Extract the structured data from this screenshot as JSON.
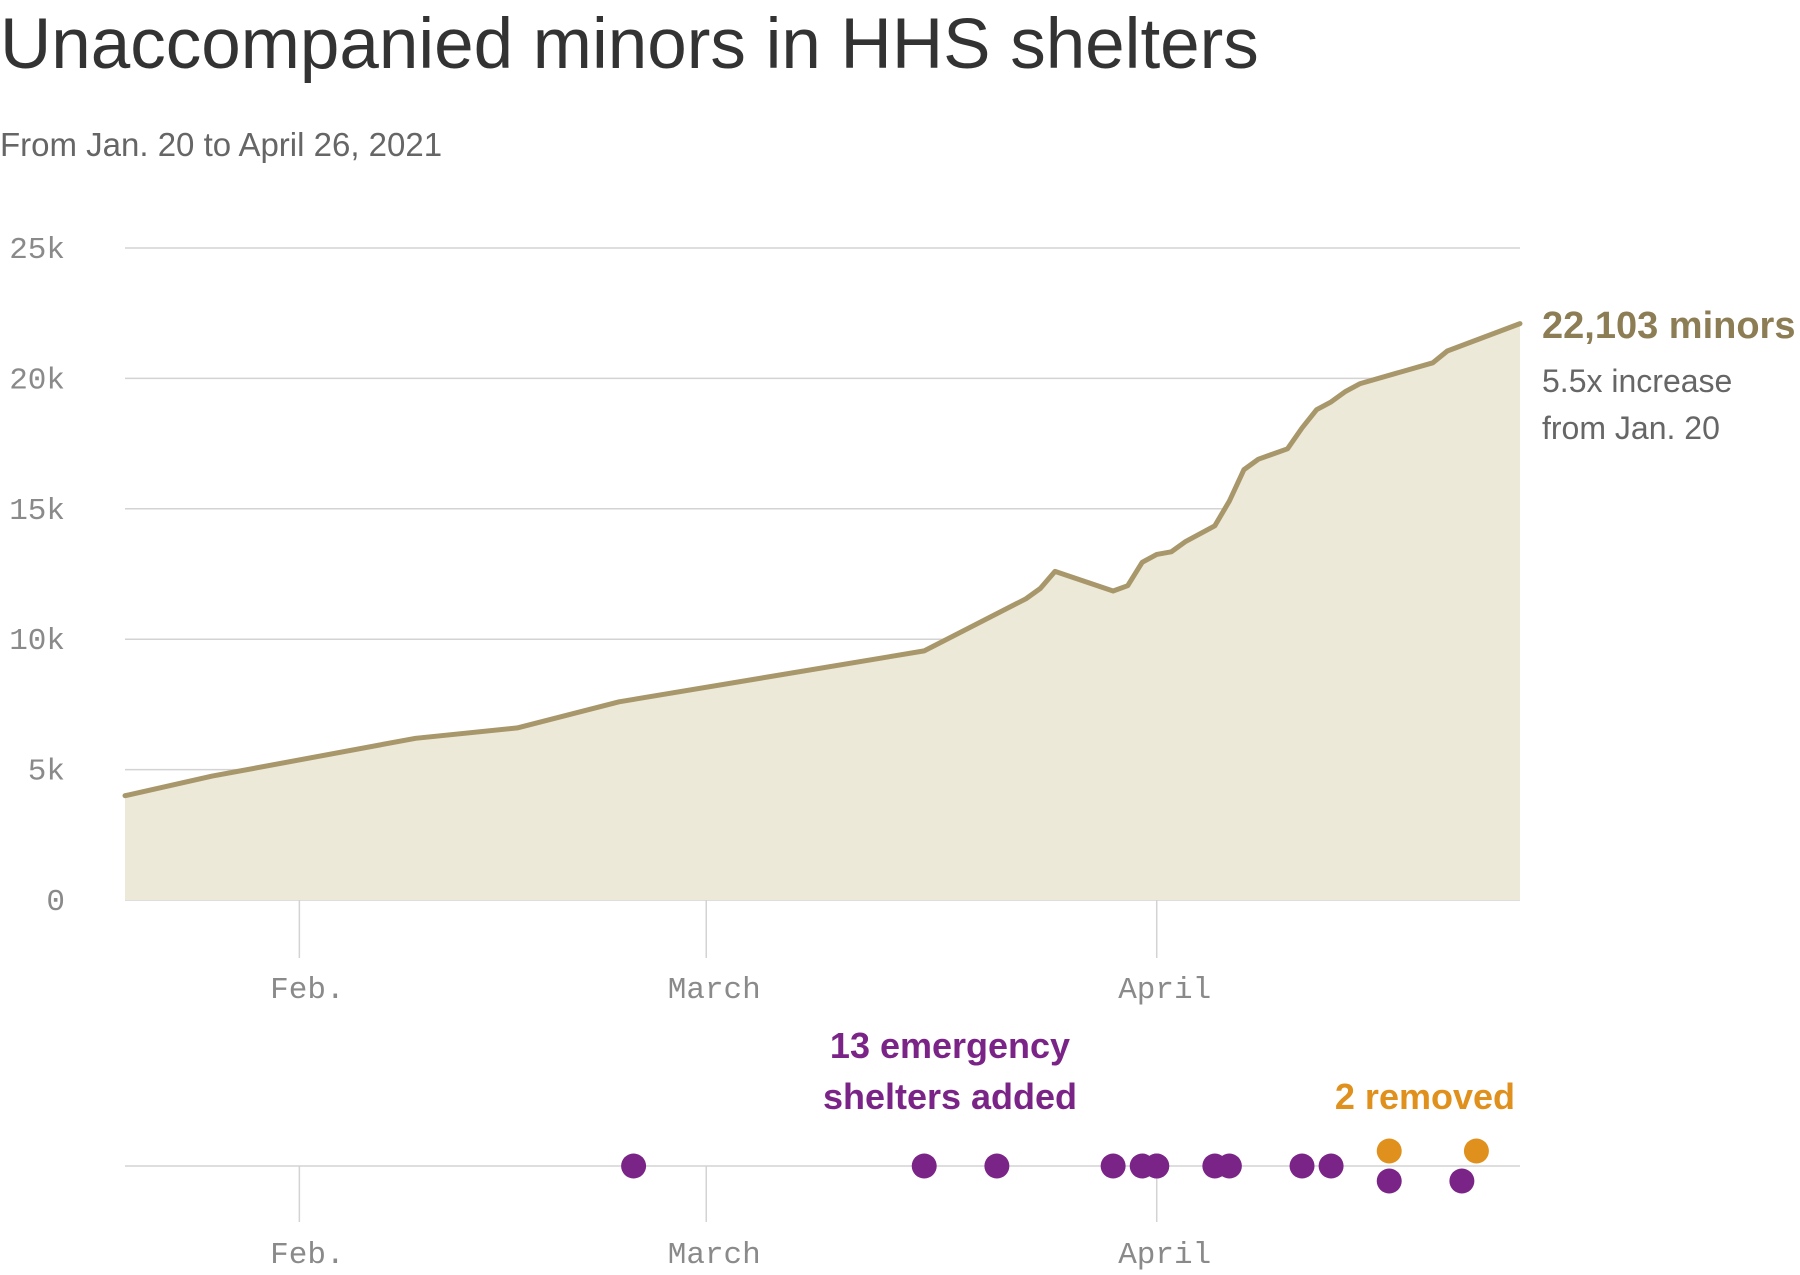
{
  "header": {
    "title": "Unaccompanied minors in HHS shelters",
    "subtitle": "From Jan. 20 to April 26, 2021"
  },
  "colors": {
    "line": "#a8976a",
    "area": "#ede9d8",
    "label": "#8c7d55",
    "grid": "#d3d3d3",
    "added": "#7b2487",
    "removed": "#e0901c"
  },
  "chart_data": [
    {
      "type": "area",
      "x_unit": "date (2021)",
      "ylim": [
        0,
        25000
      ],
      "yticks": [
        0,
        5000,
        10000,
        15000,
        20000,
        25000
      ],
      "ytick_labels": [
        "0",
        "5k",
        "10k",
        "15k",
        "20k",
        "25k"
      ],
      "xlim": [
        "2021-01-20",
        "2021-04-26"
      ],
      "xticks": [
        "2021-02-01",
        "2021-03-01",
        "2021-04-01"
      ],
      "xtick_labels": [
        "Feb.",
        "March",
        "April"
      ],
      "grid": "horizontal",
      "series": [
        {
          "x": [
            "2021-01-20",
            "2021-01-26",
            "2021-02-09",
            "2021-02-16",
            "2021-02-23",
            "2021-03-16",
            "2021-03-23",
            "2021-03-24",
            "2021-03-25",
            "2021-03-29",
            "2021-03-30",
            "2021-03-31",
            "2021-04-01",
            "2021-04-02",
            "2021-04-03",
            "2021-04-05",
            "2021-04-06",
            "2021-04-07",
            "2021-04-08",
            "2021-04-10",
            "2021-04-11",
            "2021-04-12",
            "2021-04-13",
            "2021-04-14",
            "2021-04-15",
            "2021-04-20",
            "2021-04-21",
            "2021-04-26"
          ],
          "y": [
            4000,
            4750,
            6200,
            6600,
            7600,
            9550,
            11550,
            11950,
            12600,
            11850,
            12050,
            12950,
            13250,
            13350,
            13750,
            14350,
            15300,
            16500,
            16900,
            17300,
            18100,
            18800,
            19100,
            19500,
            19800,
            20600,
            21050,
            22103
          ]
        }
      ],
      "end_label": {
        "value": "22,103 minors",
        "note_lines": [
          "5.5x increase",
          "from Jan. 20"
        ]
      }
    },
    {
      "type": "scatter",
      "x_unit": "date (2021)",
      "xticks": [
        "2021-02-01",
        "2021-03-01",
        "2021-04-01"
      ],
      "xtick_labels": [
        "Feb.",
        "March",
        "April"
      ],
      "series": [
        {
          "x": [
            "2021-02-24",
            "2021-03-16",
            "2021-03-21",
            "2021-03-29",
            "2021-03-31",
            "2021-04-01",
            "2021-04-01",
            "2021-04-05",
            "2021-04-06",
            "2021-04-11",
            "2021-04-13",
            "2021-04-17",
            "2021-04-22"
          ],
          "y": [
            0,
            0,
            0,
            0,
            0,
            0,
            0,
            0,
            0,
            0,
            0,
            -1,
            -1
          ]
        },
        {
          "x": [
            "2021-04-17",
            "2021-04-23"
          ],
          "y": [
            1,
            1
          ]
        }
      ],
      "annotations": {
        "added": [
          "13 emergency",
          "shelters added"
        ],
        "removed": "2 removed"
      }
    }
  ]
}
